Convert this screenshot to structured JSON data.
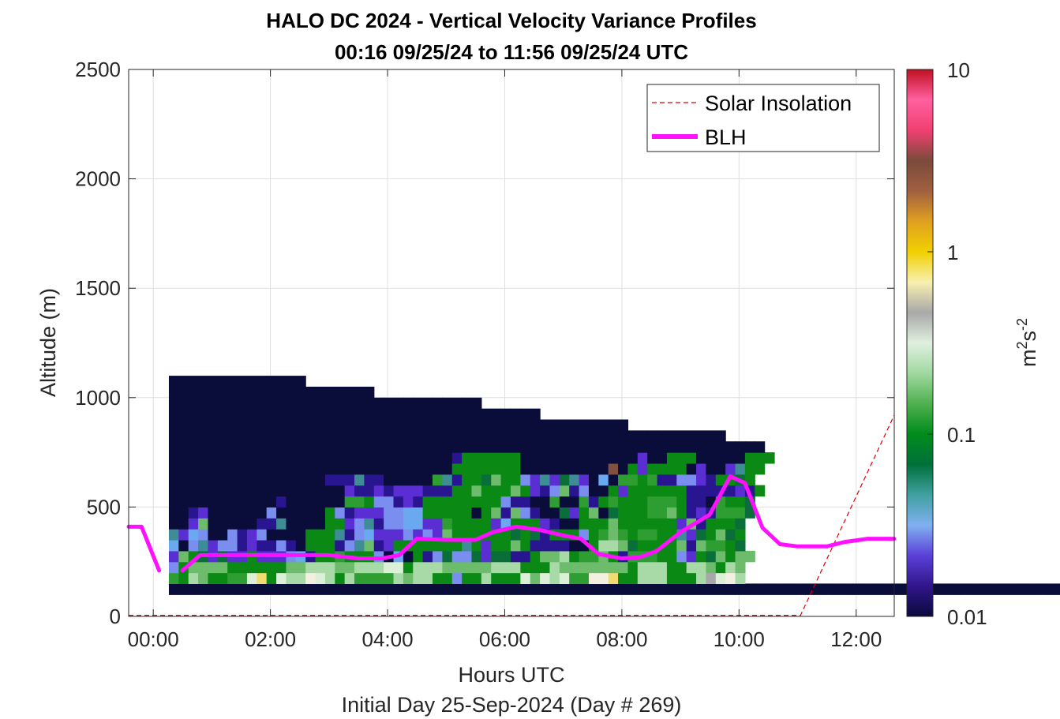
{
  "chart_data": {
    "type": "heatmap",
    "title": "HALO DC 2024 - Vertical Velocity Variance Profiles",
    "subtitle": "00:16 09/25/24 to 11:56 09/25/24  UTC",
    "xlabel": "Hours UTC",
    "xlabel2": "Initial Day 25-Sep-2024 (Day # 269)",
    "ylabel": "Altitude (m)",
    "xlim": [
      -0.42,
      12.65
    ],
    "ylim": [
      0,
      2500
    ],
    "xticks": [
      0,
      2,
      4,
      6,
      8,
      10,
      12
    ],
    "xtick_labels": [
      "00:00",
      "02:00",
      "04:00",
      "06:00",
      "08:00",
      "10:00",
      "12:00"
    ],
    "yticks": [
      0,
      500,
      1000,
      1500,
      2000,
      2500
    ],
    "ytick_labels": [
      "0",
      "500",
      "1000",
      "1500",
      "2000",
      "2500"
    ],
    "grid": true,
    "legend_position": "top-right",
    "colorbar": {
      "label_base": "m",
      "label_exp1": "2",
      "label_mid": "s",
      "label_exp2": "-2",
      "scale": "log",
      "range": [
        0.01,
        10
      ],
      "ticks": [
        0.01,
        0.1,
        1,
        10
      ],
      "tick_labels": [
        "0.01",
        "0.1",
        "1",
        "10"
      ],
      "colors": [
        "#0a0a3c",
        "#30158a",
        "#5a40d8",
        "#80b0f0",
        "#40a0a0",
        "#00703a",
        "#008c1c",
        "#50b050",
        "#a0d8a0",
        "#e0f0e0",
        "#a8a8a8",
        "#f8f0b0",
        "#f0d000",
        "#e0a020",
        "#a06040",
        "#7a4a3a",
        "#f04070",
        "#ff60a0",
        "#c01020"
      ]
    },
    "heatmap": {
      "time_start": 0.2667,
      "time_step": 0.1667,
      "alt_start": 100,
      "alt_step": 50,
      "palette": {
        "a": "#0a0c3a",
        "b": "#2a1590",
        "c": "#5a2ed2",
        "d": "#7a8ef0",
        "e": "#6aa8f0",
        "f": "#3d8c96",
        "g": "#0a6e3a",
        "h": "#0a8a14",
        "i": "#2e9e32",
        "j": "#6cbc6c",
        "k": "#a8daa8",
        "l": "#dcf0d8",
        "m": "#f0dc70",
        "n": "#805040",
        "o": "#a8a8a8",
        "p": "#f4f0e0"
      },
      "rows": [
        "aaaaaaaaaaaaaaaaaaaaaaaaaaaaaaaaaaaaaaaaaaaaaaaaaaaaaaaaaaaaaaaaaaaaaaaaaaaaaaaaaaaaaaaaaaaaaaaaaaaaaaaaaaaaaaaaaaaaaaaaaaaaaaaaaaaaaaaaaaaaaaaaaaaaaaaaaaaaaaaaaaaaaaaaaaaaaaaaaaaaaaaaaaaaaaaaaaaaaaaaaaaaaa",
        "ihkjhhiilmhlkkplkhkiiiikjkkhhdhhkhhhljlkliippmhhkkkhhhkolpk",
        "dhjjjjhhhhhhjjkkkjjkkkllhkkkjjjjjkkkhhhkjjjjjjjhkkkhhkkjhkj",
        "cjhgcgcchcccdebhhihhhdaeahbdgddgcggbbhjjkhiijhbiiihhdchgjhjj",
        "eadfcddbcbbdbahhhbdfjbchhhhhhhfhchhjhbbbbaahkkjghhhhjbjiihg",
        "fcedaadbcdaaaahhhfbdecccdcdcjhhhhhhghgbhhhdhijihiihhfcghjgh",
        "aacjaaaaabbfaaaahhcdfbddeeccihhhhcehhhcbaahhhjhhhhhhcjbhhhg",
        "aabcaaaaaadaaaaahdbcccddeehhhhhahjbjdbaagchjaghhhiijhbcbiiig",
        "aaaaaaaaaaabaaaaaaiihddbcbhhhhhhhhdbbaaiaaibhihhhiiihbbaihhg",
        "aaaaaaaaaaaaaaaaaacbbcbcccbbbhhjhhhjhcbdjbdaahchhhhhhbbbbbcbh",
        "aaaaaaaaaaaaaaaabbbfbbaaaaaifbhhgjhhdcfcgfcaeaiihibbddcbhhgh",
        "aaaaaaaaaaaaaaaaaaaaaaaaaaaaahhhhhhhaaaaaaaaanahchhhhacaacfhh",
        "aaaaaaaaaaaaaaaaaaaaaaaaaaaaabhhhhhhaaaaaaaaaaaacaahhhaaaaahhh",
        "aaaaaaaaaaaaaaaaaaaaaaaaaaaaaaaaaaaaaaaaaaaaaaaaaaaaaaaaaaaaa",
        "aaaaaaaaaaaaaaaaaaaaaaaaaaaaaaaaaaaaaaaaaaaaaaaaaaaaaaaaa",
        "aaaaaaaaaaaaaaaaaaaaaaaaaaaaaaaaaaaaaaaaaaaaaaa",
        "aaaaaaaaaaaaaaaaaaaaaaaaaaaaaaaaaaaaaa",
        "aaaaaaaaaaaaaaaaaaaaaaaaaaaaaaaa",
        "aaaaaaaaaaaaaaaaaaaaa",
        "aaaaaaaaaaaaaa"
      ]
    },
    "series": [
      {
        "name": "Solar Insolation",
        "style": "dashed",
        "color": "#e00000",
        "x": [
          -0.42,
          11.05,
          12.65
        ],
        "y": [
          5,
          5,
          920
        ]
      },
      {
        "name": "BLH",
        "style": "solid",
        "color": "#ff10ff",
        "segments": [
          {
            "x": [
              -0.42,
              -0.2,
              0.1
            ],
            "y": [
              410,
              410,
              210
            ]
          },
          {
            "x": [
              0.5,
              0.8,
              1.5,
              2.0,
              2.5,
              3.0,
              3.5,
              3.9,
              4.2,
              4.5,
              5.0,
              5.5,
              5.8,
              6.2,
              6.6,
              7.0,
              7.3,
              7.6,
              8.0,
              8.3,
              8.6,
              9.0,
              9.5,
              9.85,
              10.1,
              10.4,
              10.7,
              11.0,
              11.5,
              11.8,
              12.2,
              12.65
            ],
            "y": [
              210,
              280,
              280,
              280,
              280,
              280,
              265,
              265,
              280,
              355,
              350,
              350,
              385,
              410,
              395,
              370,
              355,
              285,
              265,
              270,
              300,
              385,
              465,
              640,
              610,
              405,
              330,
              320,
              320,
              340,
              355,
              355
            ]
          }
        ]
      }
    ]
  }
}
